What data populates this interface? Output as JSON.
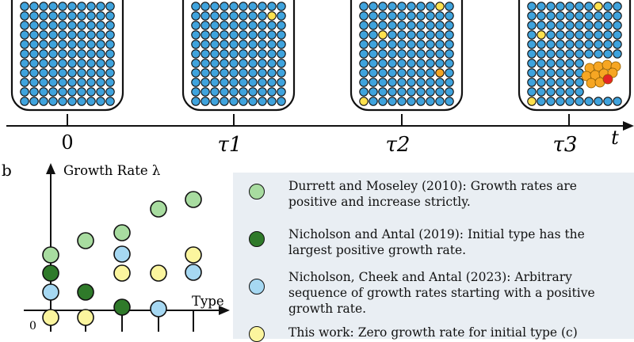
{
  "panel_a": {
    "timeline_ticks": [
      "0",
      "τ1",
      "τ2",
      "τ3"
    ],
    "axis_label": "t",
    "wells": [
      {
        "time": "0",
        "yellow_cells": 0,
        "orange_cells": 0,
        "red_cells": 0
      },
      {
        "time": "τ1",
        "yellow_cells": 1,
        "orange_cells": 0,
        "red_cells": 0
      },
      {
        "time": "τ2",
        "yellow_cells": 3,
        "orange_cells": 1,
        "red_cells": 0
      },
      {
        "time": "τ3",
        "yellow_cells": 3,
        "orange_cells": 10,
        "red_cells": 1
      }
    ]
  },
  "panel_b": {
    "label": "b",
    "y_axis_label": "Growth Rate λ",
    "x_axis_label": "Type",
    "origin_label": "0"
  },
  "colors": {
    "cell_blue": "#3fa3dd",
    "cell_yellow": "#ffe14d",
    "cell_orange": "#f6a623",
    "cell_red": "#e52525",
    "light_green": "#a8dca0",
    "dark_green": "#2f7a2a",
    "light_blue": "#a6d8f2",
    "light_yellow": "#fbf59e",
    "legend_bg": "#e9eef3"
  },
  "legend": [
    {
      "color": "light_green",
      "text": "Durrett and Moseley (2010): Growth rates are positive and increase strictly."
    },
    {
      "color": "dark_green",
      "text": "Nicholson and Antal (2019): Initial type has the largest positive growth rate."
    },
    {
      "color": "light_blue",
      "text": "Nicholson, Cheek and Antal (2023):  Arbitrary sequence of growth rates starting with a positive growth rate."
    },
    {
      "color": "light_yellow",
      "text": "This work: Zero growth rate for initial type (c)"
    }
  ]
}
